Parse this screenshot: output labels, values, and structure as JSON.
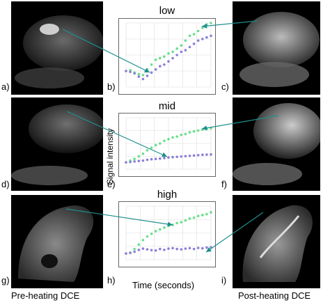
{
  "rows": [
    {
      "left_label": "a)",
      "mid_label": "b)",
      "right_label": "c)",
      "plot_title": "low"
    },
    {
      "left_label": "d)",
      "mid_label": "e)",
      "right_label": "f)",
      "plot_title": "mid"
    },
    {
      "left_label": "g)",
      "mid_label": "h)",
      "right_label": "i)",
      "plot_title": "high"
    }
  ],
  "axes": {
    "ylabel": "Signal intensity",
    "xlabel": "Time (seconds)"
  },
  "captions": {
    "left": "Pre-heating DCE",
    "right": "Post-heating DCE"
  },
  "colors": {
    "green_series": "#66e08a",
    "purple_series": "#8a7fd6",
    "arrow": "#1f8f8f"
  },
  "chart_data": [
    {
      "type": "scatter",
      "title": "low",
      "xlim": [
        0,
        300
      ],
      "ylim": [
        0,
        80
      ],
      "series": [
        {
          "x": [
            0,
            15,
            30,
            45,
            60,
            75,
            90,
            105,
            120,
            135,
            150,
            165,
            180,
            195,
            210,
            225,
            240,
            255,
            270,
            285,
            300
          ],
          "y": [
            20,
            21,
            18,
            16,
            15,
            22,
            28,
            34,
            36,
            38,
            42,
            44,
            48,
            52,
            58,
            64,
            66,
            70,
            74,
            78,
            80
          ]
        },
        {
          "x": [
            0,
            15,
            30,
            45,
            60,
            75,
            90,
            105,
            120,
            135,
            150,
            165,
            180,
            195,
            210,
            225,
            240,
            255,
            270,
            285,
            300
          ],
          "y": [
            20,
            19,
            17,
            13,
            10,
            14,
            18,
            22,
            26,
            28,
            32,
            36,
            40,
            44,
            46,
            50,
            54,
            58,
            60,
            62,
            64
          ]
        }
      ]
    },
    {
      "type": "scatter",
      "title": "mid",
      "xlim": [
        0,
        300
      ],
      "ylim": [
        0,
        300
      ],
      "series": [
        {
          "x": [
            0,
            15,
            30,
            45,
            60,
            75,
            90,
            105,
            120,
            135,
            150,
            165,
            180,
            195,
            210,
            225,
            240,
            255,
            270,
            285,
            300
          ],
          "y": [
            40,
            50,
            60,
            75,
            90,
            110,
            125,
            140,
            150,
            165,
            175,
            185,
            190,
            200,
            205,
            215,
            220,
            225,
            230,
            235,
            238
          ]
        },
        {
          "x": [
            0,
            15,
            30,
            45,
            60,
            75,
            90,
            105,
            120,
            135,
            150,
            165,
            180,
            195,
            210,
            225,
            240,
            255,
            270,
            285,
            300
          ],
          "y": [
            40,
            42,
            45,
            48,
            50,
            55,
            58,
            60,
            62,
            65,
            68,
            70,
            72,
            74,
            76,
            78,
            80,
            82,
            84,
            85,
            86
          ]
        }
      ]
    },
    {
      "type": "scatter",
      "title": "high",
      "xlim": [
        0,
        300
      ],
      "ylim": [
        0,
        300
      ],
      "series": [
        {
          "x": [
            0,
            15,
            30,
            45,
            60,
            75,
            90,
            105,
            120,
            135,
            150,
            165,
            180,
            195,
            210,
            225,
            240,
            255,
            270,
            285,
            300
          ],
          "y": [
            35,
            40,
            60,
            85,
            110,
            130,
            145,
            160,
            170,
            180,
            190,
            195,
            205,
            210,
            220,
            230,
            235,
            245,
            250,
            255,
            265
          ]
        },
        {
          "x": [
            0,
            15,
            30,
            45,
            60,
            75,
            90,
            105,
            120,
            135,
            150,
            165,
            180,
            195,
            210,
            225,
            240,
            255,
            270,
            285,
            300
          ],
          "y": [
            35,
            38,
            45,
            55,
            62,
            58,
            54,
            52,
            60,
            55,
            62,
            65,
            60,
            58,
            62,
            65,
            60,
            66,
            64,
            68,
            70
          ]
        }
      ]
    }
  ]
}
